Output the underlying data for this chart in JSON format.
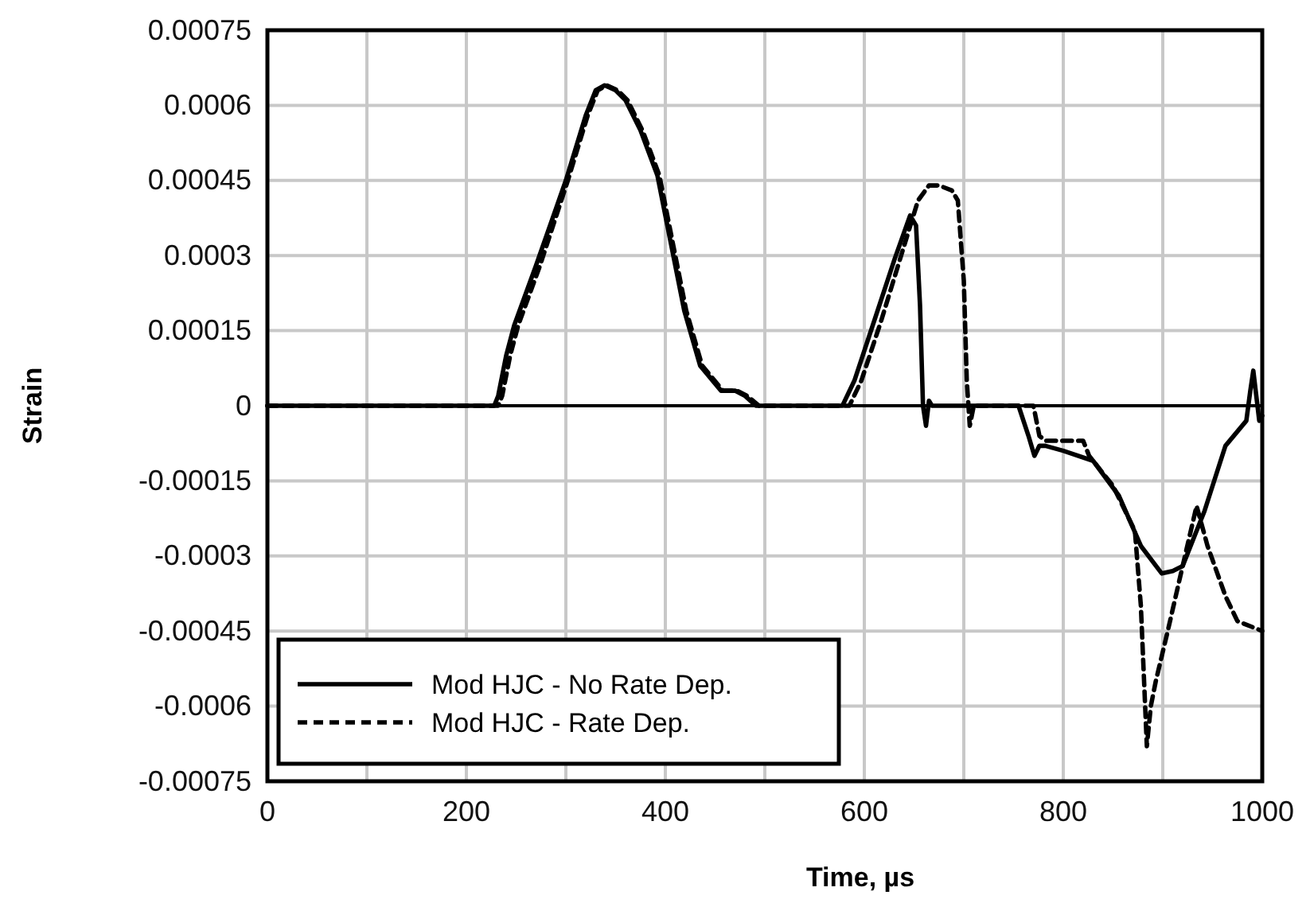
{
  "chart_data": {
    "type": "line",
    "xlabel": "Time, µs",
    "ylabel": "Strain",
    "xlim": [
      0,
      1000
    ],
    "xticks": [
      0,
      {
        "value": 100,
        "label": null
      },
      200,
      {
        "value": 300,
        "label": null
      },
      400,
      {
        "value": 500,
        "label": null
      },
      600,
      {
        "value": 700,
        "label": null
      },
      800,
      {
        "value": 900,
        "label": null
      },
      1000
    ],
    "ylim": [
      -0.00075,
      0.00075
    ],
    "yticks": [
      -0.00075,
      -0.0006,
      -0.00045,
      -0.0003,
      -0.00015,
      0,
      0.00015,
      0.0003,
      0.00045,
      0.0006,
      0.00075
    ],
    "grid": true,
    "legend": "bottom left",
    "series": [
      {
        "name": "Mod HJC - No Rate Dep.",
        "color": "#000000",
        "line_style": "solid",
        "x": [
          0,
          228,
          232,
          240,
          248,
          270,
          300,
          320,
          330,
          339,
          350,
          360,
          375,
          392,
          408,
          419,
          435,
          456,
          470,
          480,
          491,
          578,
          590,
          610,
          630,
          646,
          652,
          656,
          659,
          662,
          665,
          668,
          755,
          765,
          771,
          776,
          782,
          800,
          830,
          856,
          878,
          899,
          910,
          920,
          934,
          942,
          963,
          984,
          988,
          991,
          994,
          997,
          1000
        ],
        "values": [
          0,
          0,
          2e-05,
          0.0001,
          0.00016,
          0.00028,
          0.00045,
          0.00058,
          0.00063,
          0.00064,
          0.00063,
          0.00061,
          0.00055,
          0.00046,
          0.0003,
          0.00019,
          8e-05,
          3e-05,
          3e-05,
          2e-05,
          0,
          0,
          5e-05,
          0.00017,
          0.00029,
          0.00038,
          0.00036,
          0.0002,
          0,
          -4e-05,
          1e-05,
          0,
          0,
          -6e-05,
          -0.0001,
          -8e-05,
          -8e-05,
          -9e-05,
          -0.00011,
          -0.00018,
          -0.00028,
          -0.000335,
          -0.00033,
          -0.00032,
          -0.00025,
          -0.00021,
          -8e-05,
          -3e-05,
          3e-05,
          7e-05,
          2e-05,
          -3e-05,
          -2e-05
        ]
      },
      {
        "name": "Mod HJC - Rate Dep.",
        "color": "#000000",
        "line_style": "dashed",
        "x": [
          0,
          232,
          236,
          244,
          252,
          274,
          302,
          322,
          332,
          341,
          352,
          362,
          377,
          394,
          410,
          421,
          437,
          458,
          472,
          482,
          494,
          585,
          597,
          617,
          637,
          654,
          665,
          675,
          688,
          694,
          700,
          703,
          706,
          710,
          770,
          776,
          782,
          820,
          826,
          850,
          872,
          878,
          884,
          888,
          893,
          905,
          920,
          934,
          945,
          963,
          975,
          1000
        ],
        "values": [
          0,
          0,
          2e-05,
          0.0001,
          0.00016,
          0.00028,
          0.00045,
          0.00058,
          0.00063,
          0.00064,
          0.00063,
          0.00061,
          0.00055,
          0.00046,
          0.0003,
          0.00019,
          8e-05,
          3e-05,
          3e-05,
          2e-05,
          0,
          0,
          5e-05,
          0.00017,
          0.0003,
          0.00041,
          0.00044,
          0.00044,
          0.00043,
          0.00041,
          0.00025,
          5e-05,
          -4e-05,
          0,
          0,
          -6e-05,
          -7e-05,
          -7e-05,
          -0.0001,
          -0.00016,
          -0.00025,
          -0.0004,
          -0.00068,
          -0.0006,
          -0.00055,
          -0.00045,
          -0.00032,
          -0.0002,
          -0.00028,
          -0.00038,
          -0.00043,
          -0.00045
        ]
      }
    ]
  }
}
